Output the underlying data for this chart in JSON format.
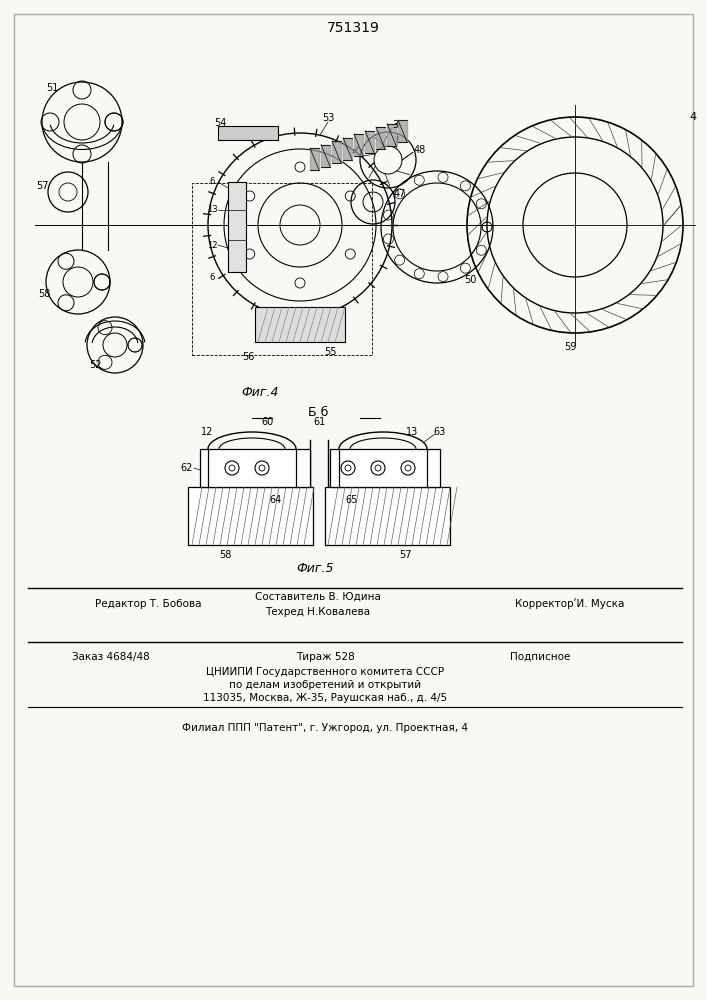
{
  "patent_number": "751319",
  "background_color": "#f8f8f5",
  "fig_width": 7.07,
  "fig_height": 10.0,
  "dpi": 100,
  "top_text": "751319",
  "fig4_caption": "Фиг.4",
  "fig5_caption": "Фиг.5",
  "fig5_section_label": "Б б",
  "footer_line1_left": "Редактор Т. Бобова",
  "footer_line1_center1": "Составитель В. Юдина",
  "footer_line1_center2": "Техред Н.Ковалева",
  "footer_line1_right": "КорректорʹИ. Муска",
  "footer_line2_left": "Заказ 4684/48",
  "footer_line2_center1": "Тираж 528",
  "footer_line2_right": "Подписное",
  "footer_line3_center": "ЦНИИПИ Государственного комитета СССР",
  "footer_line4_center": "по делам изобретений и открытий",
  "footer_line5_center": "113035, Москва, Ж-35, Раушская наб., д. 4/5",
  "footer_last": "Филиал ППП \"Патент\", г. Ужгород, ул. Проектная, 4"
}
